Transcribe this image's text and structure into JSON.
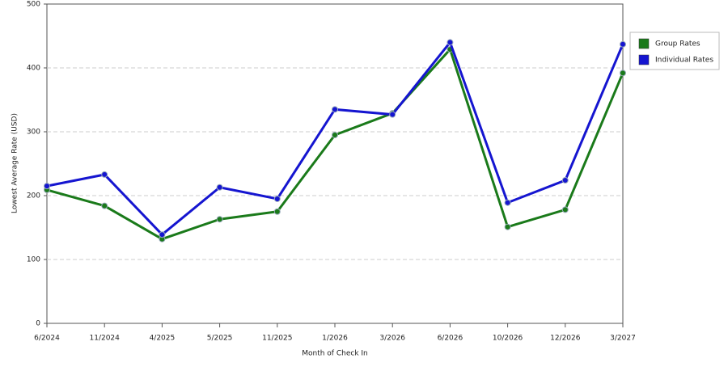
{
  "chart_data": {
    "type": "line",
    "xlabel": "Month of Check In",
    "ylabel": "Lowest Average Rate (USD)",
    "categories": [
      "6/2024",
      "11/2024",
      "4/2025",
      "5/2025",
      "11/2025",
      "1/2026",
      "3/2026",
      "6/2026",
      "10/2026",
      "12/2026",
      "3/2027"
    ],
    "series": [
      {
        "name": "Group Rates",
        "color": "#1a7a1a",
        "values": [
          209,
          184,
          132,
          163,
          175,
          295,
          329,
          429,
          151,
          178,
          392
        ]
      },
      {
        "name": "Individual Rates",
        "color": "#1515d0",
        "values": [
          215,
          233,
          139,
          213,
          195,
          335,
          327,
          440,
          189,
          224,
          437
        ]
      }
    ],
    "ylim": [
      0,
      500
    ],
    "yticks": [
      0,
      100,
      200,
      300,
      400,
      500
    ],
    "grid": true,
    "legend": "right"
  }
}
